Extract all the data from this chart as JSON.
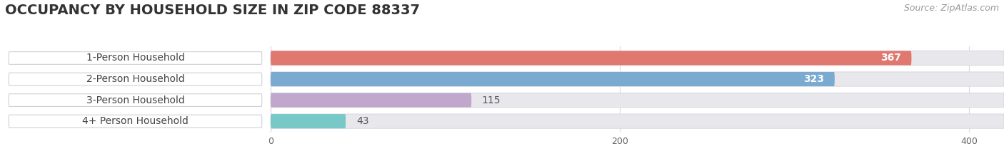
{
  "title": "OCCUPANCY BY HOUSEHOLD SIZE IN ZIP CODE 88337",
  "source": "Source: ZipAtlas.com",
  "categories": [
    "1-Person Household",
    "2-Person Household",
    "3-Person Household",
    "4+ Person Household"
  ],
  "values": [
    367,
    323,
    115,
    43
  ],
  "bar_colors": [
    "#E07870",
    "#7aaad0",
    "#C0A8CC",
    "#78C8C8"
  ],
  "label_colors": [
    "white",
    "white",
    "black",
    "black"
  ],
  "xlim_left": -155,
  "xlim_right": 420,
  "xticks": [
    0,
    200,
    400
  ],
  "background_color": "#ffffff",
  "bar_track_color": "#e8e8ec",
  "bar_track_border": "#d8d8e0",
  "title_fontsize": 14,
  "source_fontsize": 9,
  "bar_label_fontsize": 10,
  "category_fontsize": 10,
  "bar_height": 0.68,
  "bar_gap": 0.32
}
